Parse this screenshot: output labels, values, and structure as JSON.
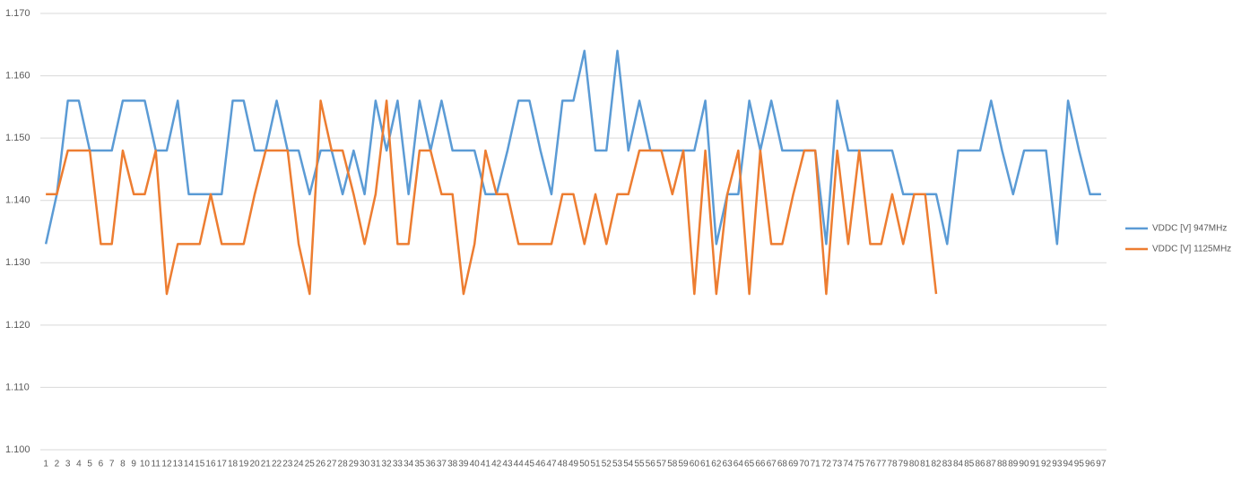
{
  "chart_data": {
    "type": "line",
    "categories": [
      1,
      2,
      3,
      4,
      5,
      6,
      7,
      8,
      9,
      10,
      11,
      12,
      13,
      14,
      15,
      16,
      17,
      18,
      19,
      20,
      21,
      22,
      23,
      24,
      25,
      26,
      27,
      28,
      29,
      30,
      31,
      32,
      33,
      34,
      35,
      36,
      37,
      38,
      39,
      40,
      41,
      42,
      43,
      44,
      45,
      46,
      47,
      48,
      49,
      50,
      51,
      52,
      53,
      54,
      55,
      56,
      57,
      58,
      59,
      60,
      61,
      62,
      63,
      64,
      65,
      66,
      67,
      68,
      69,
      70,
      71,
      72,
      73,
      74,
      75,
      76,
      77,
      78,
      79,
      80,
      81,
      82,
      83,
      84,
      85,
      86,
      87,
      88,
      89,
      90,
      91,
      92,
      93,
      94,
      95,
      96,
      97
    ],
    "series": [
      {
        "name": "VDDC [V] 947MHz",
        "color": "#5b9bd5",
        "values": [
          1.133,
          1.141,
          1.156,
          1.156,
          1.148,
          1.148,
          1.148,
          1.156,
          1.156,
          1.156,
          1.148,
          1.148,
          1.156,
          1.141,
          1.141,
          1.141,
          1.141,
          1.156,
          1.156,
          1.148,
          1.148,
          1.156,
          1.148,
          1.148,
          1.141,
          1.148,
          1.148,
          1.141,
          1.148,
          1.141,
          1.156,
          1.148,
          1.156,
          1.141,
          1.156,
          1.148,
          1.156,
          1.148,
          1.148,
          1.148,
          1.141,
          1.141,
          1.148,
          1.156,
          1.156,
          1.148,
          1.141,
          1.156,
          1.156,
          1.164,
          1.148,
          1.148,
          1.164,
          1.148,
          1.156,
          1.148,
          1.148,
          1.148,
          1.148,
          1.148,
          1.156,
          1.133,
          1.141,
          1.141,
          1.156,
          1.148,
          1.156,
          1.148,
          1.148,
          1.148,
          1.148,
          1.133,
          1.156,
          1.148,
          1.148,
          1.148,
          1.148,
          1.148,
          1.141,
          1.141,
          1.141,
          1.141,
          1.133,
          1.148,
          1.148,
          1.148,
          1.156,
          1.148,
          1.141,
          1.148,
          1.148,
          1.148,
          1.133,
          1.156,
          1.148,
          1.141,
          1.141
        ]
      },
      {
        "name": "VDDC [V] 1125MHz",
        "color": "#ed7d31",
        "values": [
          1.141,
          1.141,
          1.148,
          1.148,
          1.148,
          1.133,
          1.133,
          1.148,
          1.141,
          1.141,
          1.148,
          1.125,
          1.133,
          1.133,
          1.133,
          1.141,
          1.133,
          1.133,
          1.133,
          1.141,
          1.148,
          1.148,
          1.148,
          1.133,
          1.125,
          1.156,
          1.148,
          1.148,
          1.141,
          1.133,
          1.141,
          1.156,
          1.133,
          1.133,
          1.148,
          1.148,
          1.141,
          1.141,
          1.125,
          1.133,
          1.148,
          1.141,
          1.141,
          1.133,
          1.133,
          1.133,
          1.133,
          1.141,
          1.141,
          1.133,
          1.141,
          1.133,
          1.141,
          1.141,
          1.148,
          1.148,
          1.148,
          1.141,
          1.148,
          1.125,
          1.148,
          1.125,
          1.141,
          1.148,
          1.125,
          1.148,
          1.133,
          1.133,
          1.141,
          1.148,
          1.148,
          1.125,
          1.148,
          1.133,
          1.148,
          1.133,
          1.133,
          1.141,
          1.133,
          1.141,
          1.141,
          1.125,
          null,
          null,
          null,
          null,
          null,
          null,
          null,
          null,
          null,
          null,
          null,
          null,
          null,
          null,
          null
        ]
      }
    ],
    "ylim": [
      1.1,
      1.17
    ],
    "yticks": [
      {
        "value": 1.1,
        "label": "1.100"
      },
      {
        "value": 1.11,
        "label": "1.110"
      },
      {
        "value": 1.12,
        "label": "1.120"
      },
      {
        "value": 1.13,
        "label": "1.130"
      },
      {
        "value": 1.14,
        "label": "1.140"
      },
      {
        "value": 1.15,
        "label": "1.150"
      },
      {
        "value": 1.16,
        "label": "1.160"
      },
      {
        "value": 1.17,
        "label": "1.170"
      }
    ],
    "grid": true,
    "legend": "right"
  }
}
